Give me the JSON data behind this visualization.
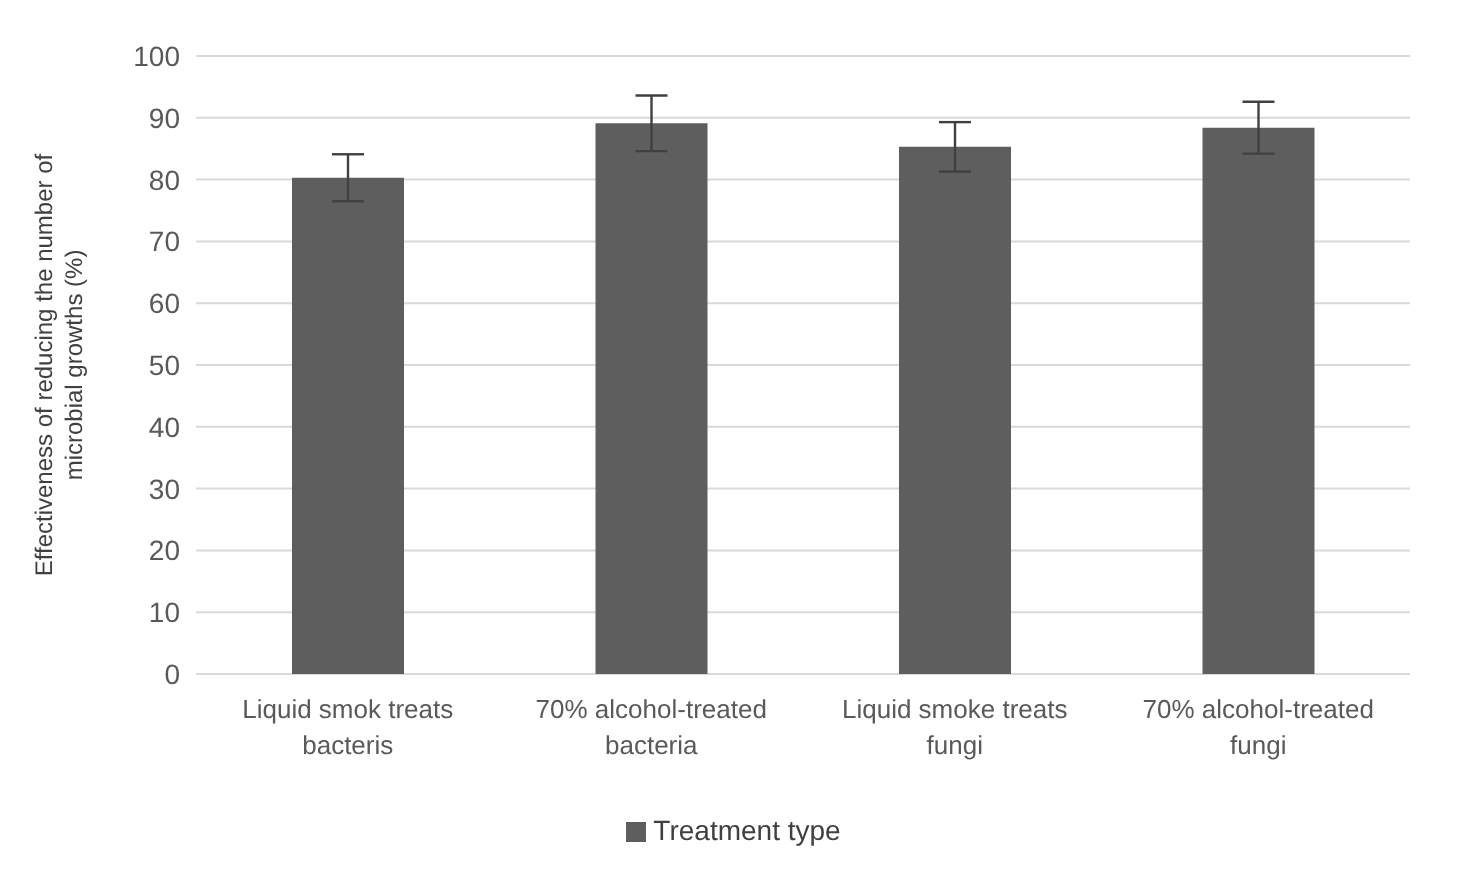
{
  "chart_data": {
    "type": "bar",
    "ylabel": "Effectiveness of reducing the number of microbial growths (%)",
    "categories": [
      "Liquid smok treats bacteris",
      "70% alcohol-treated bacteria",
      "Liquid smoke treats fungi",
      "70% alcohol-treated fungi"
    ],
    "series": [
      {
        "name": "Treatment type",
        "color": "#5e5e5e",
        "values": [
          80.3,
          89.1,
          85.3,
          88.4
        ],
        "errors": [
          3.8,
          4.5,
          4,
          4.2
        ]
      }
    ],
    "ylim": [
      0,
      100
    ],
    "yticks": [
      0,
      10,
      20,
      30,
      40,
      50,
      60,
      70,
      80,
      90,
      100
    ],
    "grid": "y",
    "legend": "bottom"
  }
}
